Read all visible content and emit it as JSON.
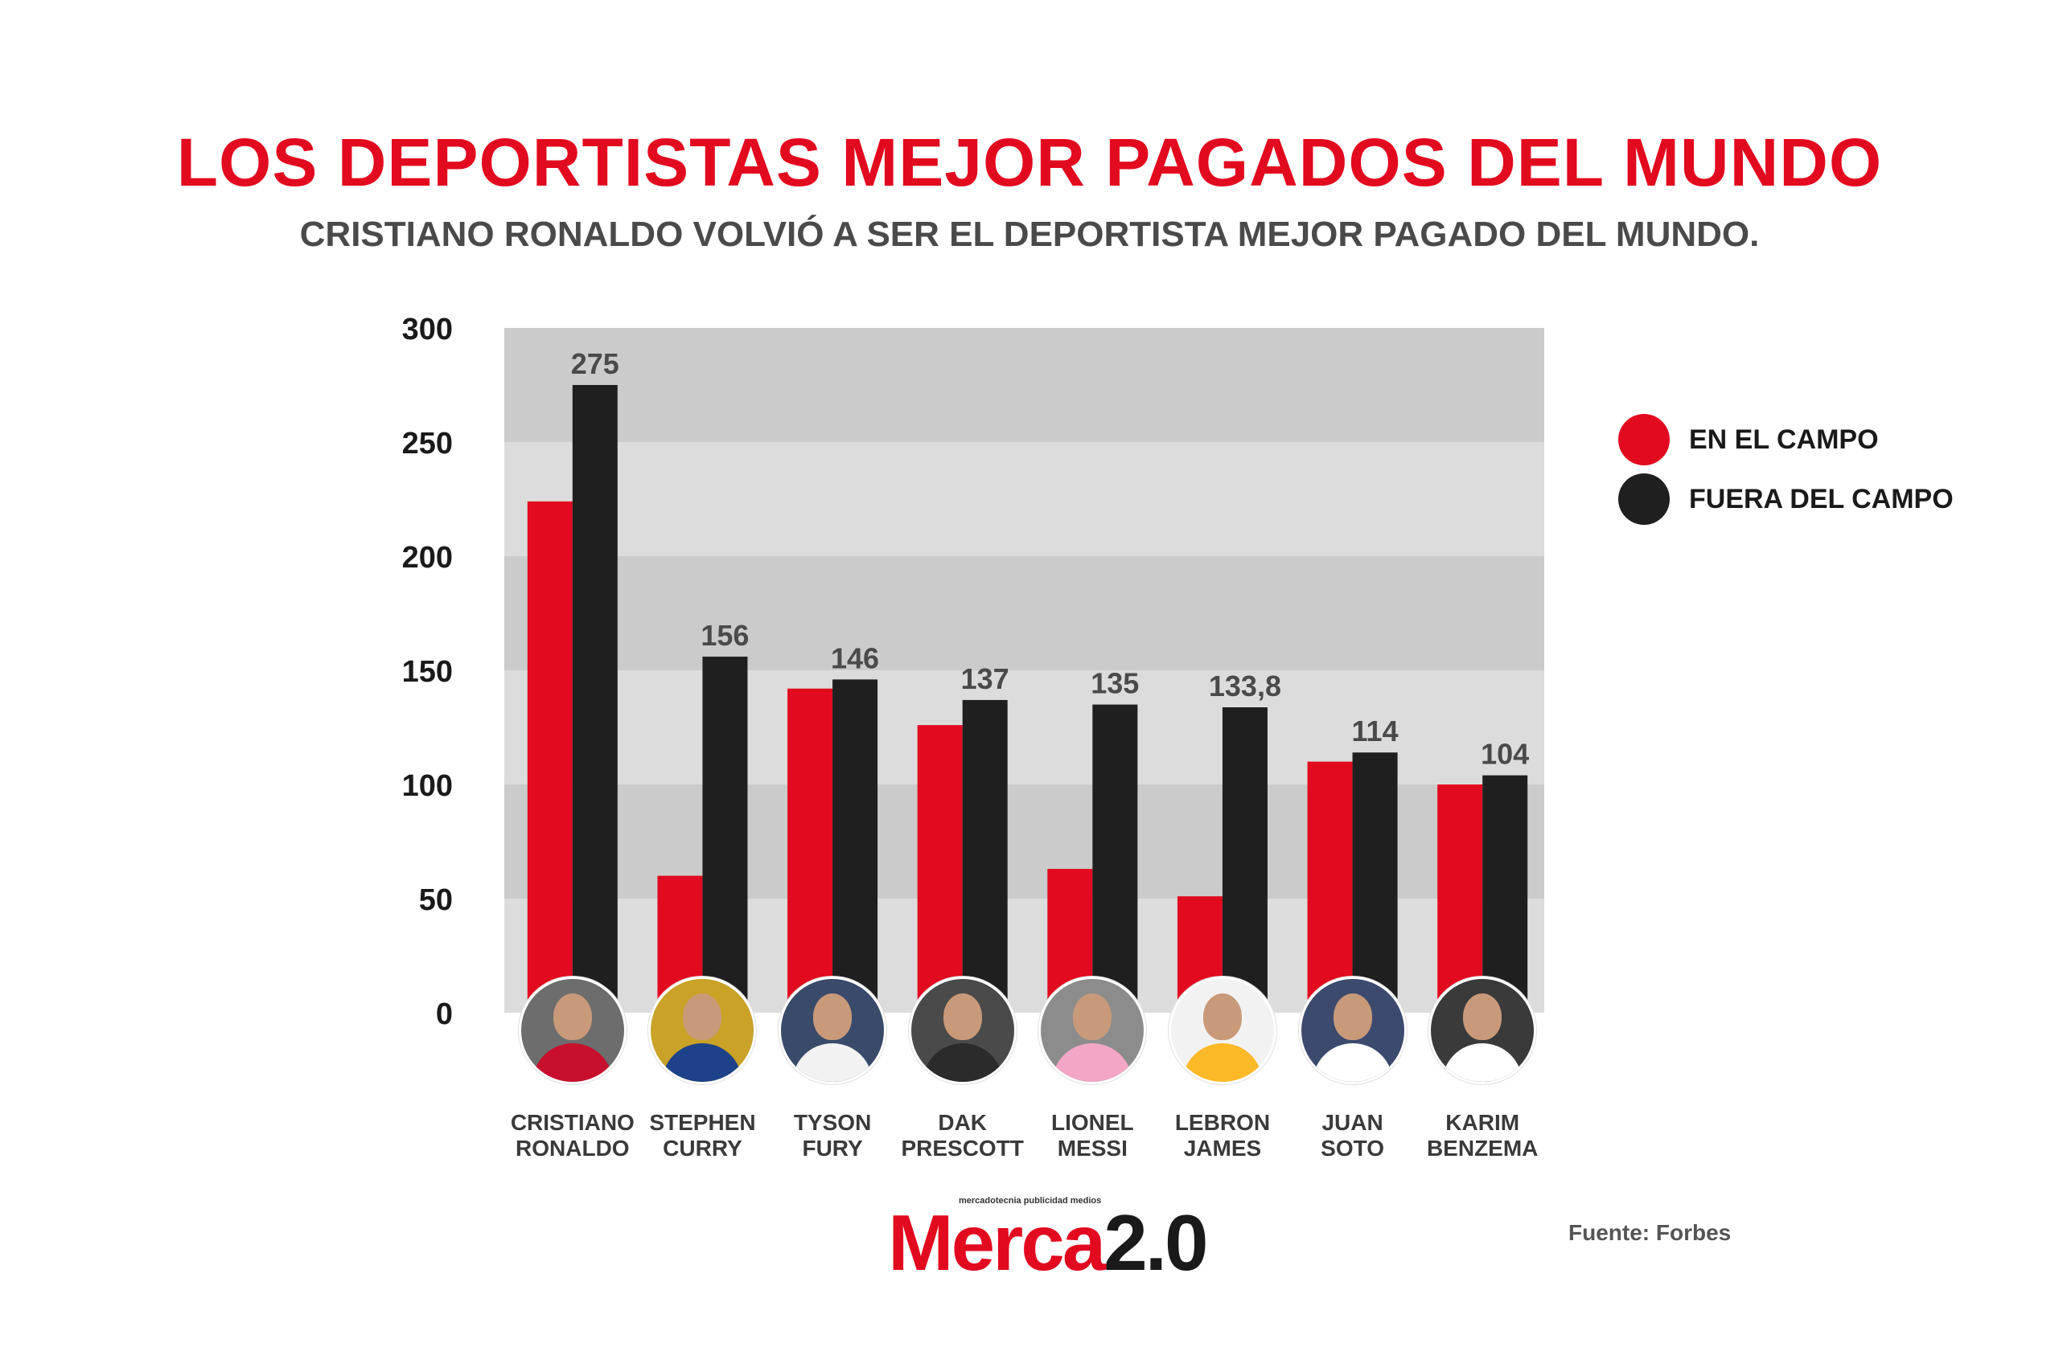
{
  "header": {
    "title": "LOS DEPORTISTAS MEJOR PAGADOS DEL MUNDO",
    "subtitle": "CRISTIANO RONALDO VOLVIÓ A SER EL DEPORTISTA MEJOR PAGADO DEL MUNDO."
  },
  "colors": {
    "accent": "#e20a1f",
    "dark": "#1f1f1f",
    "band_dark": "#cbcbcb",
    "band_light": "#dcdcdc"
  },
  "chart_data": {
    "type": "bar",
    "title": "LOS DEPORTISTAS MEJOR PAGADOS DEL MUNDO",
    "subtitle": "CRISTIANO RONALDO VOLVIÓ A SER EL DEPORTISTA MEJOR PAGADO DEL MUNDO.",
    "xlabel": "",
    "ylabel": "",
    "ylim": [
      0,
      300
    ],
    "yticks": [
      "0",
      "50",
      "100",
      "150",
      "200",
      "250",
      "300"
    ],
    "grid": true,
    "legend_position": "right",
    "categories": [
      "CRISTIANO RONALDO",
      "STEPHEN CURRY",
      "TYSON FURY",
      "DAK PRESCOTT",
      "LIONEL MESSI",
      "LEBRON JAMES",
      "JUAN SOTO",
      "KARIM BENZEMA"
    ],
    "series": [
      {
        "name": "EN EL CAMPO",
        "color": "#e20a1f",
        "values": [
          224,
          60,
          142,
          126,
          63,
          51,
          110,
          100
        ]
      },
      {
        "name": "FUERA DEL CAMPO",
        "color": "#1f1f1f",
        "values": [
          275,
          156,
          146,
          137,
          135,
          133.8,
          114,
          104
        ],
        "data_labels": [
          "275",
          "156",
          "146",
          "137",
          "135",
          "133,8",
          "114",
          "104"
        ]
      }
    ]
  },
  "athletes": [
    {
      "first": "CRISTIANO",
      "last": "RONALDO",
      "shirt": "#c8102e",
      "bg": "#6d6d6d"
    },
    {
      "first": "STEPHEN",
      "last": "CURRY",
      "shirt": "#1d428a",
      "bg": "#c9a227"
    },
    {
      "first": "TYSON",
      "last": "FURY",
      "shirt": "#f2f2f2",
      "bg": "#3a4a6a"
    },
    {
      "first": "DAK",
      "last": "PRESCOTT",
      "shirt": "#2b2b2b",
      "bg": "#4a4a4a"
    },
    {
      "first": "LIONEL",
      "last": "MESSI",
      "shirt": "#f4a6c6",
      "bg": "#8c8c8c"
    },
    {
      "first": "LEBRON",
      "last": "JAMES",
      "shirt": "#fdb927",
      "bg": "#f2f2f2"
    },
    {
      "first": "JUAN",
      "last": "SOTO",
      "shirt": "#ffffff",
      "bg": "#3c4a6e"
    },
    {
      "first": "KARIM",
      "last": "BENZEMA",
      "shirt": "#ffffff",
      "bg": "#3a3a3a"
    }
  ],
  "logo": {
    "tagline": "mercadotecnia publicidad medios",
    "word": "Merca",
    "version": "2.0"
  },
  "source": "Fuente: Forbes"
}
